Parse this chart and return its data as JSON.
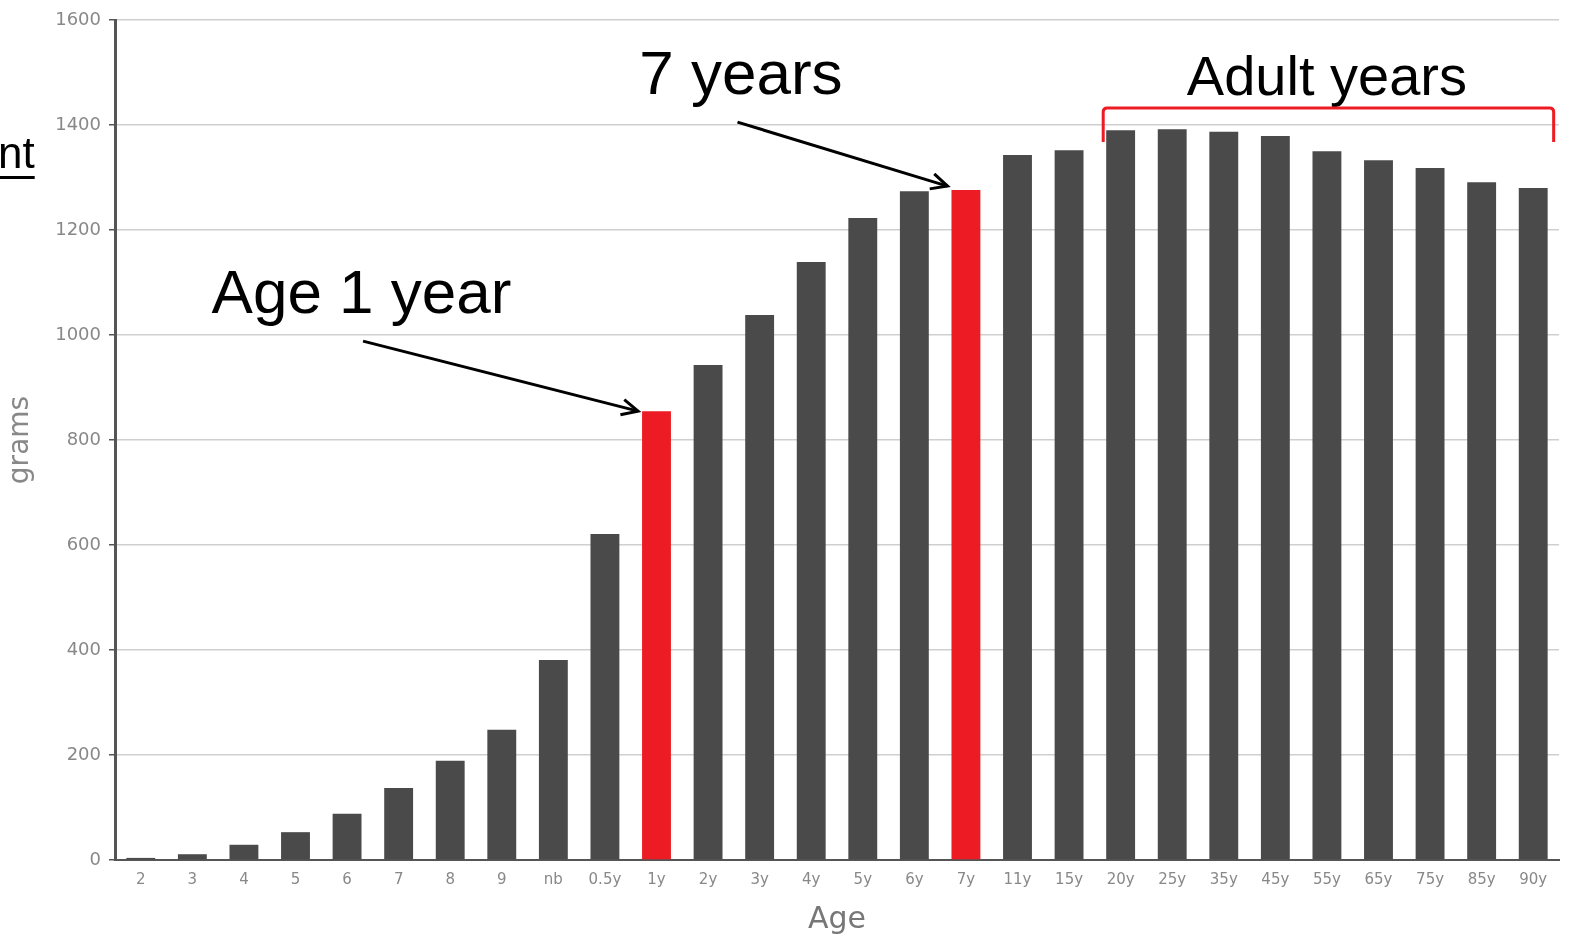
{
  "chart_data": {
    "type": "bar",
    "xlabel": "Age",
    "ylabel": "grams",
    "categories": [
      "2",
      "3",
      "4",
      "5",
      "6",
      "7",
      "8",
      "9",
      "nb",
      "0.5y",
      "1y",
      "2y",
      "3y",
      "4y",
      "5y",
      "6y",
      "7y",
      "11y",
      "15y",
      "20y",
      "25y",
      "35y",
      "45y",
      "55y",
      "65y",
      "75y",
      "85y",
      "90y"
    ],
    "values": [
      4,
      11,
      29,
      53,
      88,
      137,
      189,
      248,
      381,
      621,
      855,
      943,
      1038,
      1139,
      1223,
      1274,
      1276,
      1343,
      1352,
      1390,
      1392,
      1387,
      1379,
      1350,
      1333,
      1318,
      1291,
      1280
    ],
    "colors": [
      "#4a4a4a",
      "#4a4a4a",
      "#4a4a4a",
      "#4a4a4a",
      "#4a4a4a",
      "#4a4a4a",
      "#4a4a4a",
      "#4a4a4a",
      "#4a4a4a",
      "#4a4a4a",
      "#ed1c24",
      "#4a4a4a",
      "#4a4a4a",
      "#4a4a4a",
      "#4a4a4a",
      "#4a4a4a",
      "#ed1c24",
      "#4a4a4a",
      "#4a4a4a",
      "#4a4a4a",
      "#4a4a4a",
      "#4a4a4a",
      "#4a4a4a",
      "#4a4a4a",
      "#4a4a4a",
      "#4a4a4a",
      "#4a4a4a",
      "#4a4a4a"
    ],
    "ylim": [
      0,
      1600
    ],
    "yticks": [
      0,
      200,
      400,
      600,
      800,
      1000,
      1200,
      1400,
      1600
    ],
    "grid": "y",
    "legend": false,
    "annotations": [
      {
        "text": "Age 1 year",
        "x": "1y",
        "y": 855
      },
      {
        "text": "7 years",
        "x": "7y",
        "y": 1276
      },
      "Adult years",
      "nt"
    ]
  }
}
